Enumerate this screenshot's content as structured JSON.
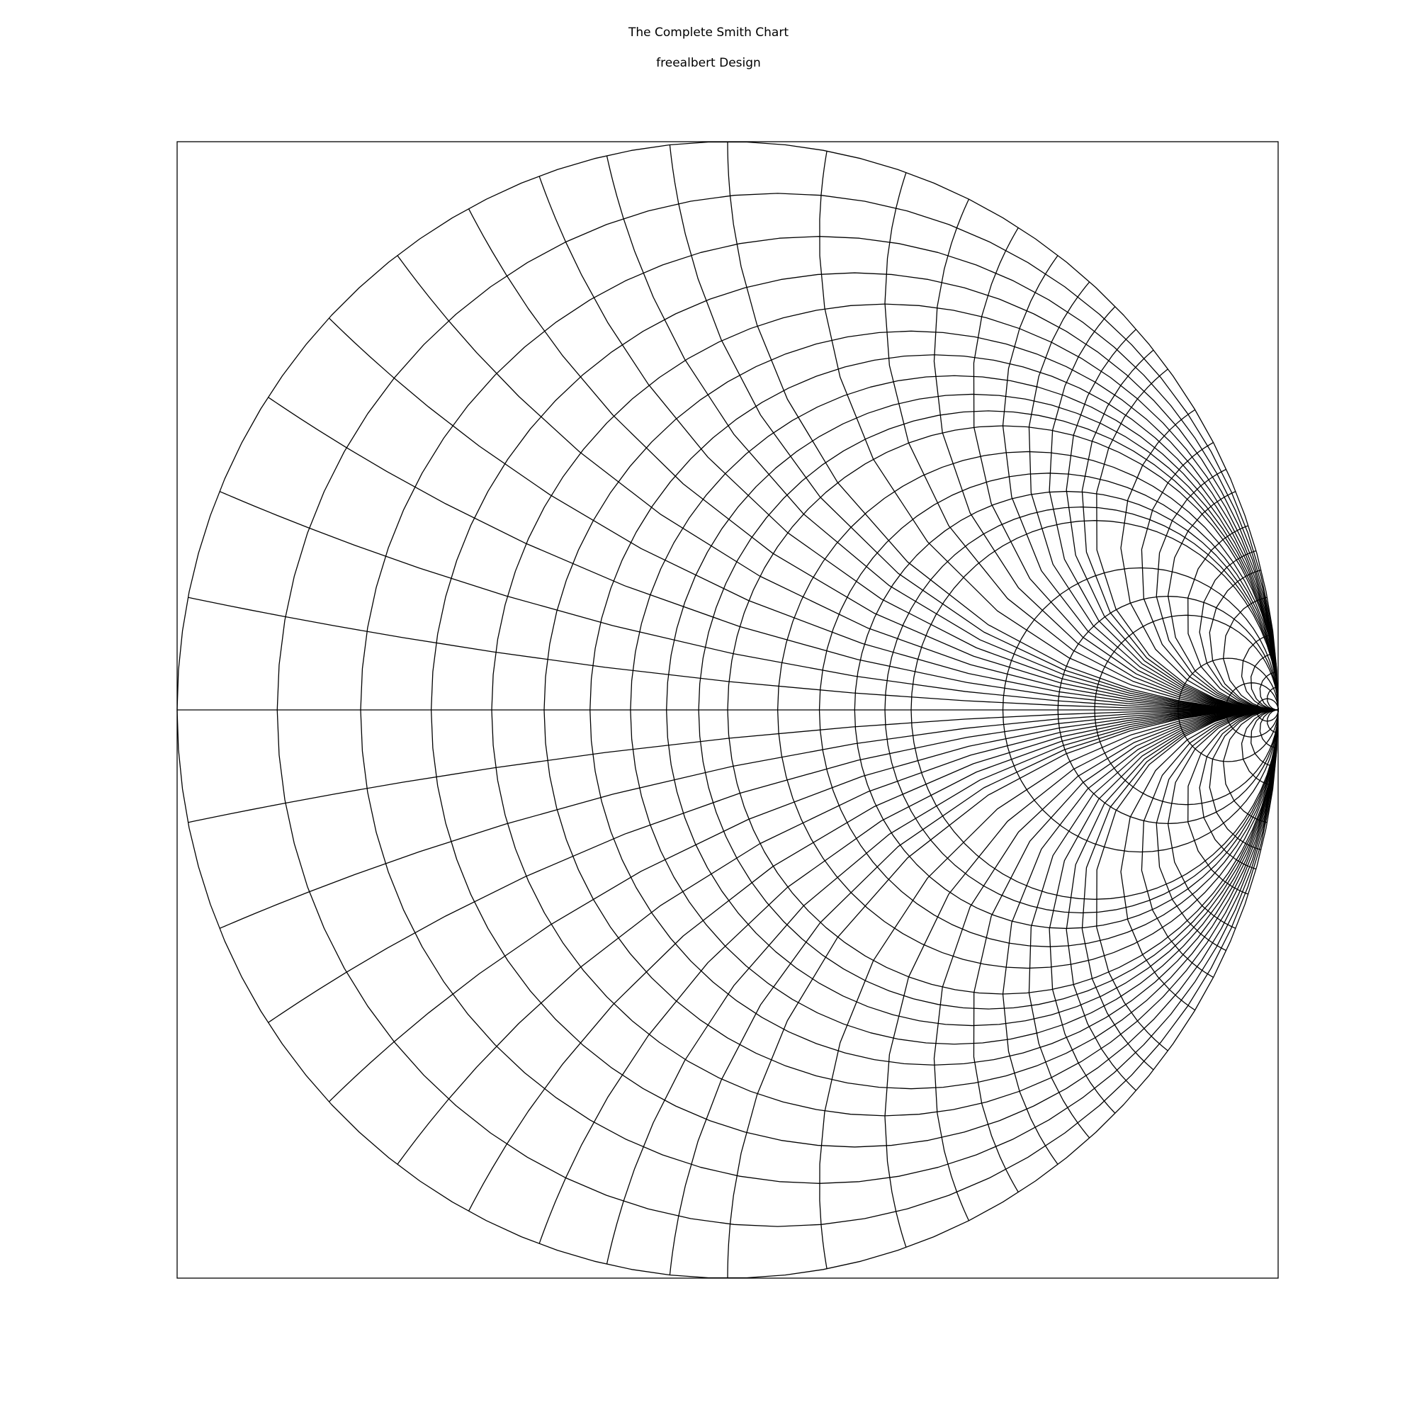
{
  "header": {
    "title": "The Complete Smith Chart",
    "subtitle": "freealbert Design"
  },
  "chart_data": {
    "type": "smith",
    "title": "The Complete Smith Chart",
    "subtitle": "freealbert Design",
    "xlim": [
      -1,
      1
    ],
    "ylim": [
      -1,
      1
    ],
    "resistance_circles": [
      0.1,
      0.2,
      0.3,
      0.4,
      0.5,
      0.6,
      0.7,
      0.8,
      0.9,
      1.0,
      1.2,
      1.4,
      1.6,
      1.8,
      2.0,
      3.0,
      4.0,
      5.0,
      10.0,
      20.0,
      50.0
    ],
    "reactance_values": [
      0.1,
      0.2,
      0.3,
      0.4,
      0.5,
      0.6,
      0.7,
      0.8,
      0.9,
      1.0,
      1.2,
      1.4,
      1.6,
      1.8,
      2.0,
      2.2,
      2.4,
      2.6,
      2.8,
      3.0,
      3.5,
      4.0,
      4.5,
      5.0,
      6.0,
      7.0,
      8.0,
      10.0,
      15.0,
      20.0,
      30.0,
      50.0
    ],
    "reactance_signs": [
      "positive",
      "negative"
    ],
    "real_axis": true,
    "grid": true,
    "line_color": "#000000",
    "background_color": "#ffffff"
  }
}
